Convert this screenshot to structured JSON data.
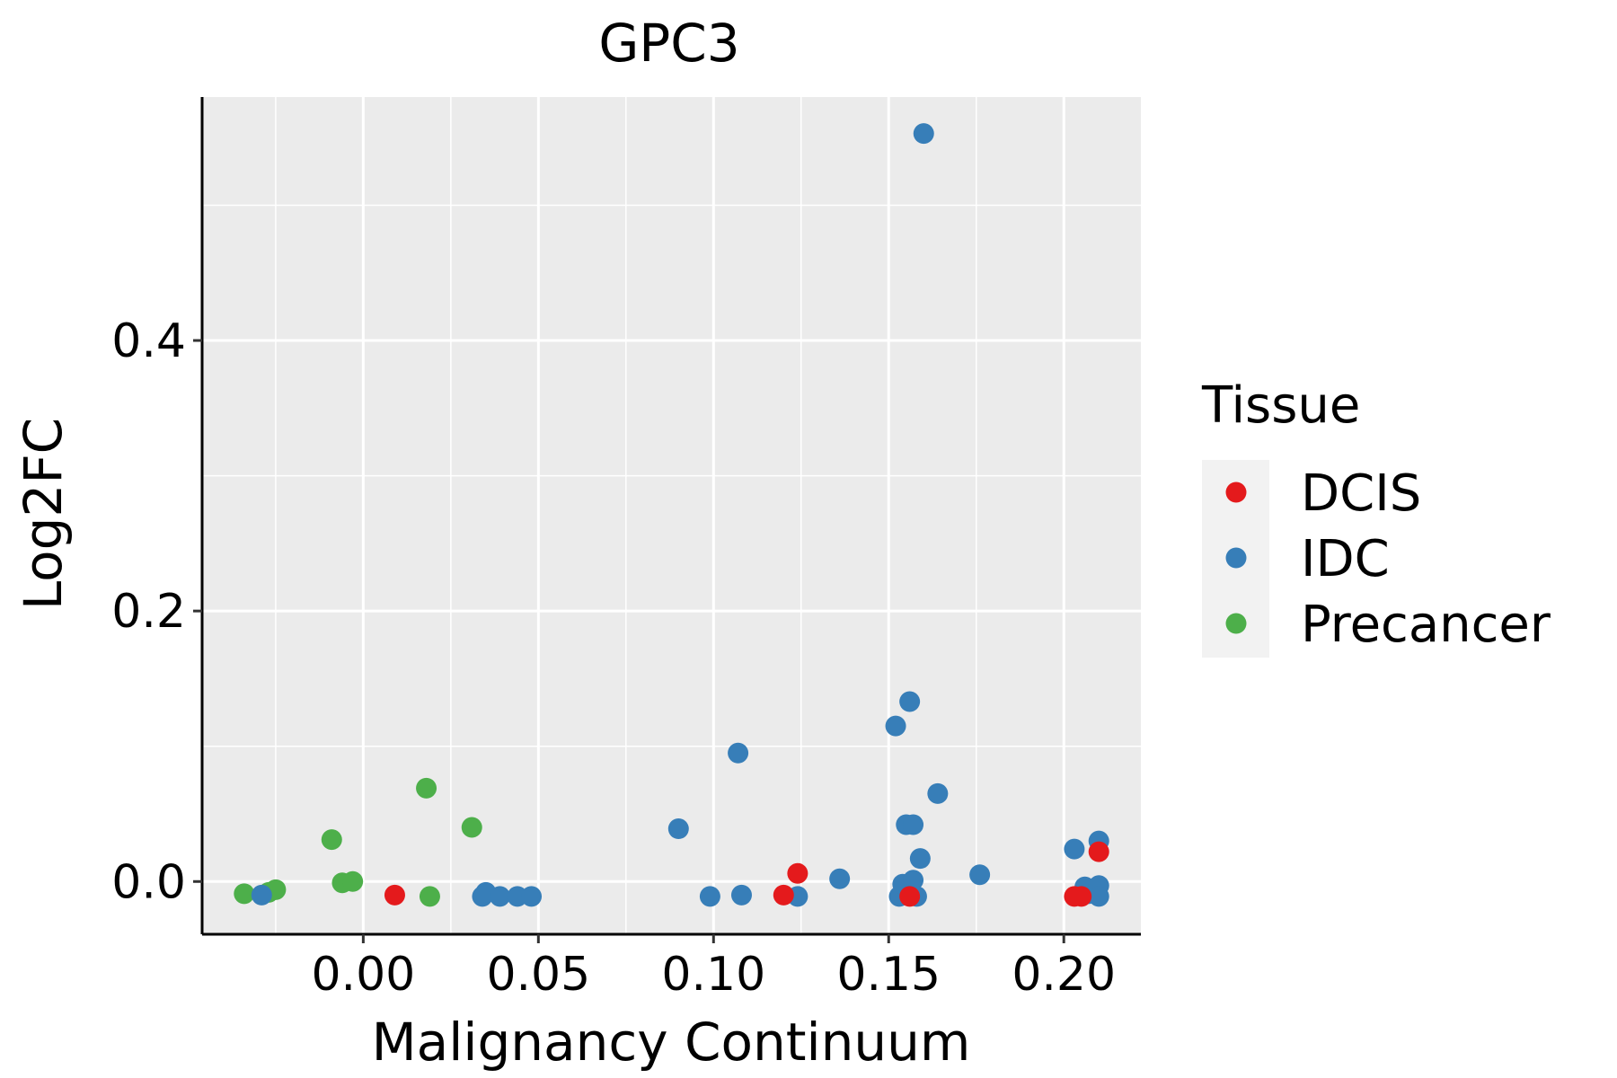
{
  "chart_data": {
    "type": "scatter",
    "title": "GPC3",
    "xlabel": "Malignancy Continuum",
    "ylabel": "Log2FC",
    "xlim": [
      -0.046,
      0.222
    ],
    "ylim": [
      -0.039,
      0.58
    ],
    "x_ticks": [
      0.0,
      0.05,
      0.1,
      0.15,
      0.2
    ],
    "x_tick_labels": [
      "0.00",
      "0.05",
      "0.10",
      "0.15",
      "0.20"
    ],
    "y_ticks": [
      0.0,
      0.2,
      0.4
    ],
    "y_tick_labels": [
      "0.0",
      "0.2",
      "0.4"
    ],
    "grid": true,
    "legend": {
      "title": "Tissue",
      "position": "right",
      "entries": [
        {
          "name": "DCIS",
          "color": "#E41A1C"
        },
        {
          "name": "IDC",
          "color": "#377EB8"
        },
        {
          "name": "Precancer",
          "color": "#4DAF4A"
        }
      ]
    },
    "series": [
      {
        "name": "Precancer",
        "color": "#4DAF4A",
        "points": [
          [
            -0.034,
            -0.009
          ],
          [
            -0.027,
            -0.008
          ],
          [
            -0.025,
            -0.006
          ],
          [
            -0.009,
            0.031
          ],
          [
            -0.006,
            -0.001
          ],
          [
            -0.003,
            0.0
          ],
          [
            0.018,
            0.069
          ],
          [
            0.019,
            -0.011
          ],
          [
            0.031,
            0.04
          ]
        ]
      },
      {
        "name": "IDC",
        "color": "#377EB8",
        "points": [
          [
            -0.029,
            -0.01
          ],
          [
            0.034,
            -0.011
          ],
          [
            0.035,
            -0.008
          ],
          [
            0.039,
            -0.011
          ],
          [
            0.044,
            -0.011
          ],
          [
            0.048,
            -0.011
          ],
          [
            0.09,
            0.039
          ],
          [
            0.099,
            -0.011
          ],
          [
            0.107,
            0.095
          ],
          [
            0.108,
            -0.01
          ],
          [
            0.124,
            -0.011
          ],
          [
            0.136,
            0.002
          ],
          [
            0.152,
            0.115
          ],
          [
            0.153,
            -0.011
          ],
          [
            0.154,
            -0.002
          ],
          [
            0.155,
            0.042
          ],
          [
            0.156,
            0.133
          ],
          [
            0.157,
            0.001
          ],
          [
            0.157,
            0.042
          ],
          [
            0.158,
            -0.011
          ],
          [
            0.159,
            0.017
          ],
          [
            0.16,
            0.553
          ],
          [
            0.164,
            0.065
          ],
          [
            0.176,
            0.005
          ],
          [
            0.203,
            0.024
          ],
          [
            0.206,
            -0.004
          ],
          [
            0.207,
            -0.009
          ],
          [
            0.21,
            -0.003
          ],
          [
            0.21,
            0.03
          ],
          [
            0.21,
            -0.011
          ]
        ]
      },
      {
        "name": "DCIS",
        "color": "#E41A1C",
        "points": [
          [
            0.009,
            -0.01
          ],
          [
            0.12,
            -0.01
          ],
          [
            0.124,
            0.006
          ],
          [
            0.156,
            -0.011
          ],
          [
            0.203,
            -0.011
          ],
          [
            0.205,
            -0.011
          ],
          [
            0.21,
            0.022
          ]
        ]
      }
    ]
  }
}
